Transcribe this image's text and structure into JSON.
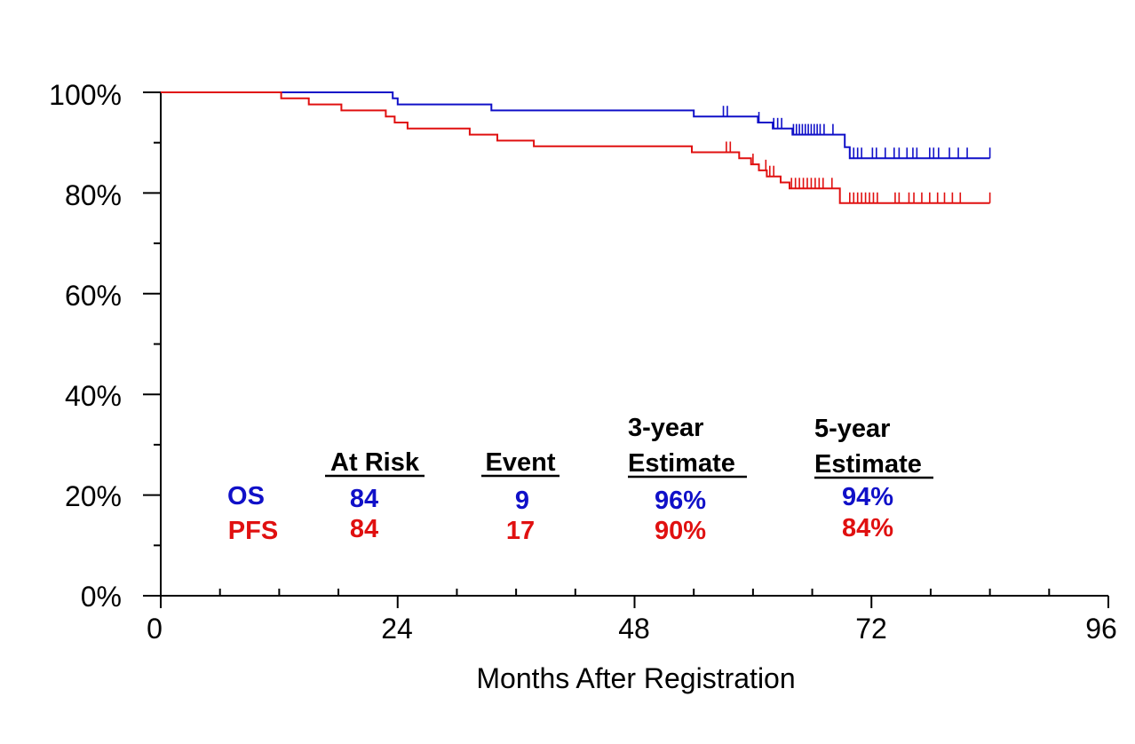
{
  "chart_data": {
    "type": "line",
    "subtype": "kaplan-meier",
    "xlabel": "Months After Registration",
    "ylabel": "",
    "xlim": [
      0,
      96
    ],
    "ylim": [
      0,
      100
    ],
    "x_ticks": [
      "0",
      "24",
      "48",
      "72",
      "96"
    ],
    "x_tick_values": [
      0,
      24,
      48,
      72,
      96
    ],
    "y_ticks": [
      "0%",
      "20%",
      "40%",
      "60%",
      "80%",
      "100%"
    ],
    "y_tick_values": [
      0,
      20,
      40,
      60,
      80,
      100
    ],
    "grid": false,
    "colors": {
      "OS": "#1010c8",
      "PFS": "#e01010",
      "axis": "#000000"
    },
    "series": [
      {
        "name": "OS",
        "steps": [
          [
            0,
            100
          ],
          [
            23,
            100
          ],
          [
            23.5,
            98.8
          ],
          [
            24,
            97.6
          ],
          [
            33,
            97.6
          ],
          [
            33.5,
            96.4
          ],
          [
            53.5,
            96.4
          ],
          [
            54,
            95.2
          ],
          [
            60,
            95.2
          ],
          [
            60.5,
            94
          ],
          [
            61.5,
            94
          ],
          [
            62,
            92.8
          ],
          [
            63.5,
            92.8
          ],
          [
            64,
            91.6
          ],
          [
            68.5,
            91.6
          ],
          [
            69.3,
            89.1
          ],
          [
            69.8,
            86.9
          ],
          [
            84,
            86.9
          ]
        ],
        "censor_times": [
          57,
          57.4,
          60.6,
          62.1,
          62.5,
          62.9,
          64.1,
          64.4,
          64.7,
          65,
          65.3,
          65.6,
          65.9,
          66.2,
          66.5,
          66.8,
          67.2,
          68.1,
          69.8,
          70.2,
          70.6,
          71,
          72.1,
          72.5,
          73.4,
          74.3,
          74.8,
          75.6,
          76.2,
          76.6,
          77.9,
          78.3,
          78.8,
          79.9,
          80.8,
          81.7,
          84
        ]
      },
      {
        "name": "PFS",
        "steps": [
          [
            0,
            100
          ],
          [
            12,
            100
          ],
          [
            12.2,
            98.8
          ],
          [
            14.8,
            98.8
          ],
          [
            15,
            97.6
          ],
          [
            18,
            97.6
          ],
          [
            18.3,
            96.4
          ],
          [
            22.5,
            96.4
          ],
          [
            22.8,
            95.2
          ],
          [
            23.4,
            95.2
          ],
          [
            23.7,
            94
          ],
          [
            24.8,
            94
          ],
          [
            25,
            92.8
          ],
          [
            31,
            92.8
          ],
          [
            31.3,
            91.6
          ],
          [
            33.8,
            91.6
          ],
          [
            34.1,
            90.4
          ],
          [
            37.5,
            90.4
          ],
          [
            37.8,
            89.3
          ],
          [
            53.5,
            89.3
          ],
          [
            53.8,
            88.1
          ],
          [
            58.3,
            88.1
          ],
          [
            58.6,
            86.9
          ],
          [
            59.5,
            86.9
          ],
          [
            59.8,
            85.7
          ],
          [
            60.3,
            85.7
          ],
          [
            60.6,
            84.5
          ],
          [
            61.1,
            84.5
          ],
          [
            61.4,
            83.3
          ],
          [
            62.5,
            83.3
          ],
          [
            62.8,
            82.1
          ],
          [
            63.4,
            82.1
          ],
          [
            63.7,
            80.9
          ],
          [
            68.5,
            80.9
          ],
          [
            68.8,
            78
          ],
          [
            84,
            78
          ]
        ],
        "censor_times": [
          57.3,
          57.7,
          60,
          61.3,
          61.7,
          62.1,
          63.9,
          64.3,
          64.7,
          65.1,
          65.5,
          65.9,
          66.3,
          66.7,
          67.1,
          68,
          69.8,
          70.2,
          70.6,
          71,
          71.4,
          71.8,
          72.2,
          72.6,
          74.4,
          74.8,
          75.8,
          76.3,
          77.1,
          77.9,
          78.7,
          79.4,
          80.2,
          81,
          84
        ]
      }
    ],
    "table": {
      "headers": {
        "at_risk": "At Risk",
        "event": "Event",
        "est3_line1": "3-year",
        "est3_line2": "Estimate",
        "est5_line1": "5-year",
        "est5_line2": "Estimate"
      },
      "rows": [
        {
          "name": "OS",
          "at_risk": "84",
          "event": "9",
          "est3": "96%",
          "est5": "94%"
        },
        {
          "name": "PFS",
          "at_risk": "84",
          "event": "17",
          "est3": "90%",
          "est5": "84%"
        }
      ]
    }
  }
}
